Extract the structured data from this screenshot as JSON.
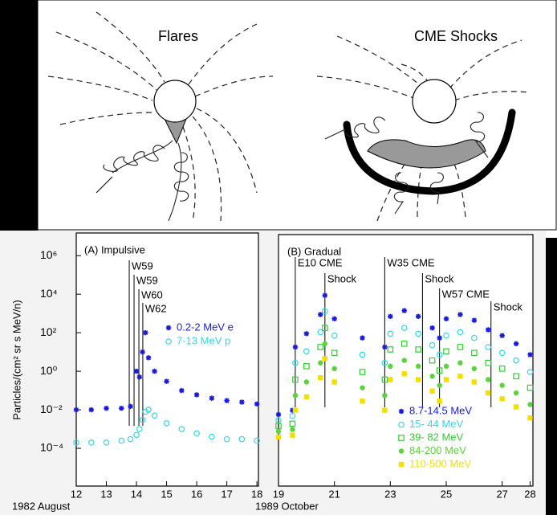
{
  "diagram": {
    "panels": [
      "Flares",
      "CME Shocks"
    ]
  },
  "chart_data": [
    {
      "type": "scatter",
      "title": "(A) Impulsive",
      "y_label": "Particles/(cm² sr s MeV/n)",
      "x_label": "1982 August",
      "log_y": true,
      "xlim": [
        12,
        18.05
      ],
      "ylim": [
        1.1e-06,
        15000000.0
      ],
      "xticks": [
        12,
        13,
        14,
        15,
        16,
        17,
        18
      ],
      "yticks": [
        {
          "value": 1000000,
          "label": "10⁶"
        },
        {
          "value": 10000,
          "label": "10⁴"
        },
        {
          "value": 100,
          "label": "10²"
        },
        {
          "value": 1,
          "label": "10⁰"
        },
        {
          "value": 0.01,
          "label": "10⁻²"
        },
        {
          "value": 0.0001,
          "label": "10⁻⁴"
        }
      ],
      "x": [
        12,
        12.5,
        13,
        13.5,
        13.8,
        14.0,
        14.1,
        14.2,
        14.3,
        14.4,
        14.6,
        15,
        15.5,
        16,
        16.5,
        17,
        17.5,
        18
      ],
      "series": [
        {
          "name": "0.2-2 MeV e",
          "color": "#1a1adc",
          "marker": "asterisk",
          "values": [
            0.01,
            0.01,
            0.012,
            0.012,
            0.015,
            1,
            0.5,
            10,
            100,
            5,
            1,
            0.3,
            0.1,
            0.06,
            0.04,
            0.03,
            0.025,
            0.02
          ]
        },
        {
          "name": "7-13 MeV p",
          "color": "#33d8e6",
          "marker": "circle",
          "values": [
            0.0002,
            0.0002,
            0.0002,
            0.00025,
            0.0003,
            0.0005,
            0.001,
            0.003,
            0.008,
            0.01,
            0.005,
            0.002,
            0.001,
            0.0006,
            0.0004,
            0.0003,
            0.0003,
            0.00025
          ]
        }
      ],
      "annotations": [
        {
          "text": "W59",
          "x": 13.76
        },
        {
          "text": "W59",
          "x": 13.92
        },
        {
          "text": "W60",
          "x": 14.08
        },
        {
          "text": "W62",
          "x": 14.21
        }
      ]
    },
    {
      "type": "scatter",
      "title": "(B) Gradual",
      "x_label": "1989 October",
      "log_y": true,
      "xlim": [
        19,
        28.1
      ],
      "ylim": [
        1.1e-06,
        15000000.0
      ],
      "xticks": [
        19,
        21,
        23,
        25,
        27,
        28
      ],
      "x": [
        19,
        19.5,
        19.6,
        20,
        20.5,
        20.66,
        21,
        22,
        22.8,
        23,
        23.5,
        24,
        24.5,
        24.76,
        25,
        25.5,
        26,
        26.5,
        27,
        27.5,
        28
      ],
      "series": [
        {
          "name": "8.7-14.5 MeV",
          "color": "#1a1adc",
          "marker": "asterisk",
          "values": [
            0.006,
            0.01,
            20,
            100,
            1000,
            10000,
            600,
            60,
            20,
            800,
            1600,
            800,
            200,
            60,
            600,
            1000,
            500,
            160,
            80,
            30,
            8
          ]
        },
        {
          "name": "15- 44 MeV",
          "color": "#33d8e6",
          "marker": "circle",
          "values": [
            0.003,
            0.005,
            3,
            12,
            120,
            1500,
            80,
            8,
            3,
            100,
            200,
            100,
            25,
            8,
            80,
            120,
            60,
            20,
            10,
            4,
            1
          ]
        },
        {
          "name": "39- 82 MeV",
          "color": "#2fcf2f",
          "marker": "square",
          "values": [
            0.0015,
            0.002,
            0.4,
            2,
            20,
            200,
            10,
            1,
            0.4,
            15,
            30,
            15,
            4,
            1.2,
            12,
            20,
            10,
            3,
            1.5,
            0.6,
            0.15
          ]
        },
        {
          "name": "84-200 MeV",
          "color": "#5ad43a",
          "marker": "dot",
          "values": [
            0.0008,
            0.001,
            0.06,
            0.3,
            3,
            30,
            1.5,
            0.15,
            0.06,
            2,
            4,
            2,
            0.6,
            0.2,
            2,
            3,
            1.5,
            0.4,
            0.2,
            0.08,
            0.02
          ]
        },
        {
          "name": "110-500 MeV",
          "color": "#f2e000",
          "marker": "filled-square",
          "values": [
            0.0004,
            0.0005,
            0.01,
            0.05,
            0.5,
            5,
            0.3,
            0.03,
            0.01,
            0.4,
            0.8,
            0.4,
            0.1,
            0.03,
            0.4,
            0.6,
            0.3,
            0.08,
            0.04,
            0.015,
            0.004
          ]
        }
      ],
      "annotations": [
        {
          "text": "E10 CME",
          "x": 19.6
        },
        {
          "text": "Shock",
          "x": 20.66
        },
        {
          "text": "W35 CME",
          "x": 22.8
        },
        {
          "text": "Shock",
          "x": 24.15
        },
        {
          "text": "W57 CME",
          "x": 24.76
        },
        {
          "text": "Shock",
          "x": 26.6
        }
      ]
    }
  ]
}
